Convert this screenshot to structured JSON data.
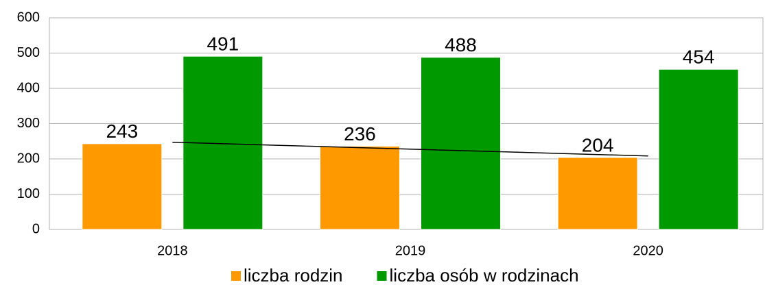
{
  "chart_data": {
    "type": "bar",
    "categories": [
      "2018",
      "2019",
      "2020"
    ],
    "series": [
      {
        "name": "liczba rodzin",
        "color": "#ff9900",
        "values": [
          243,
          236,
          204
        ],
        "trendline": true
      },
      {
        "name": "liczba osób w rodzinach",
        "color": "#009900",
        "values": [
          491,
          488,
          454
        ]
      }
    ],
    "ylim": [
      0,
      600
    ],
    "yticks": [
      0,
      100,
      200,
      300,
      400,
      500,
      600
    ],
    "grid": true,
    "legend": "bottom"
  }
}
